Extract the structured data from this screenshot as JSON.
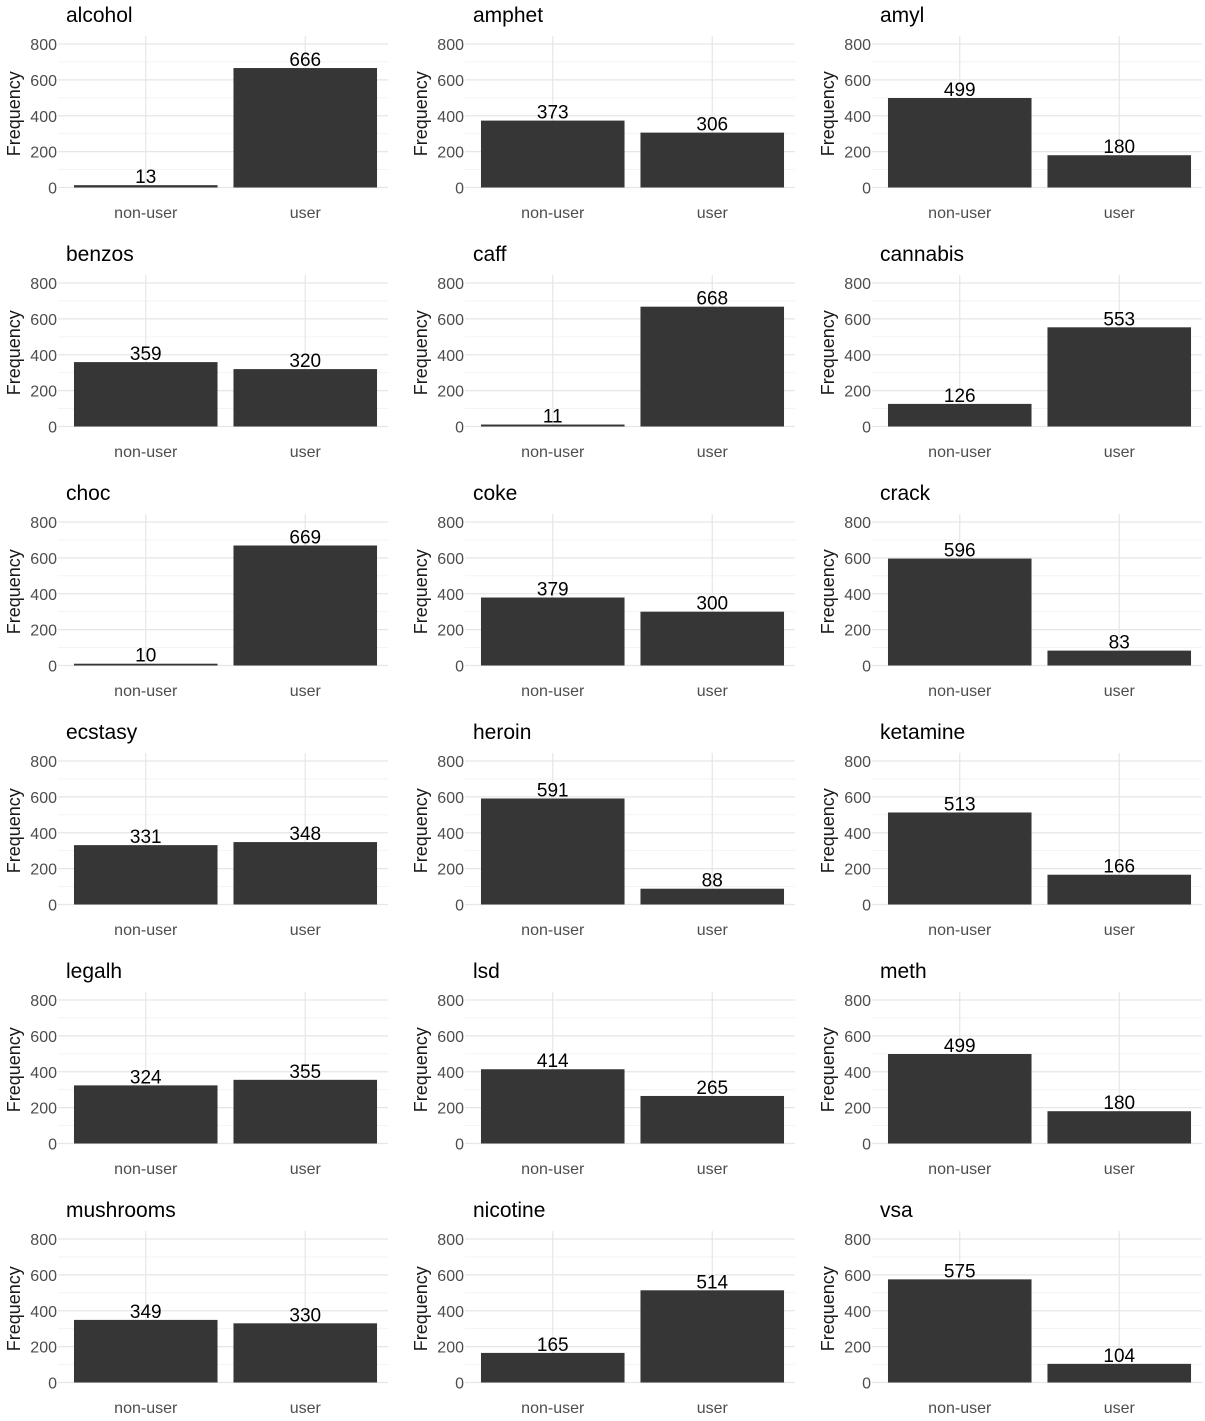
{
  "colors": {
    "bar": "#363636",
    "grid_major": "#e6e6e6",
    "grid_minor": "#f2f2f2",
    "text": "#000000",
    "tick_text": "#4d4d4d"
  },
  "chart_data": [
    {
      "type": "bar",
      "title": "alcohol",
      "categories": [
        "non-user",
        "user"
      ],
      "values": [
        13,
        666
      ],
      "ylabel": "Frequency",
      "xlabel": "",
      "ylim": [
        0,
        800
      ],
      "yticks": [
        "0",
        "200",
        "400",
        "600",
        "800"
      ]
    },
    {
      "type": "bar",
      "title": "amphet",
      "categories": [
        "non-user",
        "user"
      ],
      "values": [
        373,
        306
      ],
      "ylabel": "Frequency",
      "xlabel": "",
      "ylim": [
        0,
        800
      ],
      "yticks": [
        "0",
        "200",
        "400",
        "600",
        "800"
      ]
    },
    {
      "type": "bar",
      "title": "amyl",
      "categories": [
        "non-user",
        "user"
      ],
      "values": [
        499,
        180
      ],
      "ylabel": "Frequency",
      "xlabel": "",
      "ylim": [
        0,
        800
      ],
      "yticks": [
        "0",
        "200",
        "400",
        "600",
        "800"
      ]
    },
    {
      "type": "bar",
      "title": "benzos",
      "categories": [
        "non-user",
        "user"
      ],
      "values": [
        359,
        320
      ],
      "ylabel": "Frequency",
      "xlabel": "",
      "ylim": [
        0,
        800
      ],
      "yticks": [
        "0",
        "200",
        "400",
        "600",
        "800"
      ]
    },
    {
      "type": "bar",
      "title": "caff",
      "categories": [
        "non-user",
        "user"
      ],
      "values": [
        11,
        668
      ],
      "ylabel": "Frequency",
      "xlabel": "",
      "ylim": [
        0,
        800
      ],
      "yticks": [
        "0",
        "200",
        "400",
        "600",
        "800"
      ]
    },
    {
      "type": "bar",
      "title": "cannabis",
      "categories": [
        "non-user",
        "user"
      ],
      "values": [
        126,
        553
      ],
      "ylabel": "Frequency",
      "xlabel": "",
      "ylim": [
        0,
        800
      ],
      "yticks": [
        "0",
        "200",
        "400",
        "600",
        "800"
      ]
    },
    {
      "type": "bar",
      "title": "choc",
      "categories": [
        "non-user",
        "user"
      ],
      "values": [
        10,
        669
      ],
      "ylabel": "Frequency",
      "xlabel": "",
      "ylim": [
        0,
        800
      ],
      "yticks": [
        "0",
        "200",
        "400",
        "600",
        "800"
      ]
    },
    {
      "type": "bar",
      "title": "coke",
      "categories": [
        "non-user",
        "user"
      ],
      "values": [
        379,
        300
      ],
      "ylabel": "Frequency",
      "xlabel": "",
      "ylim": [
        0,
        800
      ],
      "yticks": [
        "0",
        "200",
        "400",
        "600",
        "800"
      ]
    },
    {
      "type": "bar",
      "title": "crack",
      "categories": [
        "non-user",
        "user"
      ],
      "values": [
        596,
        83
      ],
      "ylabel": "Frequency",
      "xlabel": "",
      "ylim": [
        0,
        800
      ],
      "yticks": [
        "0",
        "200",
        "400",
        "600",
        "800"
      ]
    },
    {
      "type": "bar",
      "title": "ecstasy",
      "categories": [
        "non-user",
        "user"
      ],
      "values": [
        331,
        348
      ],
      "ylabel": "Frequency",
      "xlabel": "",
      "ylim": [
        0,
        800
      ],
      "yticks": [
        "0",
        "200",
        "400",
        "600",
        "800"
      ]
    },
    {
      "type": "bar",
      "title": "heroin",
      "categories": [
        "non-user",
        "user"
      ],
      "values": [
        591,
        88
      ],
      "ylabel": "Frequency",
      "xlabel": "",
      "ylim": [
        0,
        800
      ],
      "yticks": [
        "0",
        "200",
        "400",
        "600",
        "800"
      ]
    },
    {
      "type": "bar",
      "title": "ketamine",
      "categories": [
        "non-user",
        "user"
      ],
      "values": [
        513,
        166
      ],
      "ylabel": "Frequency",
      "xlabel": "",
      "ylim": [
        0,
        800
      ],
      "yticks": [
        "0",
        "200",
        "400",
        "600",
        "800"
      ]
    },
    {
      "type": "bar",
      "title": "legalh",
      "categories": [
        "non-user",
        "user"
      ],
      "values": [
        324,
        355
      ],
      "ylabel": "Frequency",
      "xlabel": "",
      "ylim": [
        0,
        800
      ],
      "yticks": [
        "0",
        "200",
        "400",
        "600",
        "800"
      ]
    },
    {
      "type": "bar",
      "title": "lsd",
      "categories": [
        "non-user",
        "user"
      ],
      "values": [
        414,
        265
      ],
      "ylabel": "Frequency",
      "xlabel": "",
      "ylim": [
        0,
        800
      ],
      "yticks": [
        "0",
        "200",
        "400",
        "600",
        "800"
      ]
    },
    {
      "type": "bar",
      "title": "meth",
      "categories": [
        "non-user",
        "user"
      ],
      "values": [
        499,
        180
      ],
      "ylabel": "Frequency",
      "xlabel": "",
      "ylim": [
        0,
        800
      ],
      "yticks": [
        "0",
        "200",
        "400",
        "600",
        "800"
      ]
    },
    {
      "type": "bar",
      "title": "mushrooms",
      "categories": [
        "non-user",
        "user"
      ],
      "values": [
        349,
        330
      ],
      "ylabel": "Frequency",
      "xlabel": "",
      "ylim": [
        0,
        800
      ],
      "yticks": [
        "0",
        "200",
        "400",
        "600",
        "800"
      ]
    },
    {
      "type": "bar",
      "title": "nicotine",
      "categories": [
        "non-user",
        "user"
      ],
      "values": [
        165,
        514
      ],
      "ylabel": "Frequency",
      "xlabel": "",
      "ylim": [
        0,
        800
      ],
      "yticks": [
        "0",
        "200",
        "400",
        "600",
        "800"
      ]
    },
    {
      "type": "bar",
      "title": "vsa",
      "categories": [
        "non-user",
        "user"
      ],
      "values": [
        575,
        104
      ],
      "ylabel": "Frequency",
      "xlabel": "",
      "ylim": [
        0,
        800
      ],
      "yticks": [
        "0",
        "200",
        "400",
        "600",
        "800"
      ]
    }
  ]
}
